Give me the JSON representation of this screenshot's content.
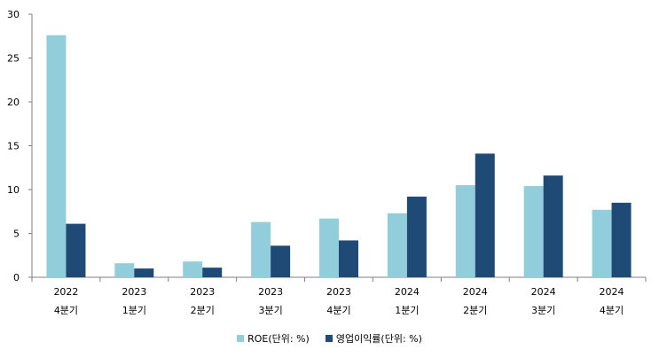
{
  "chart_data": {
    "type": "bar",
    "categories": [
      [
        "2022",
        "4분기"
      ],
      [
        "2023",
        "1분기"
      ],
      [
        "2023",
        "2분기"
      ],
      [
        "2023",
        "3분기"
      ],
      [
        "2023",
        "4분기"
      ],
      [
        "2024",
        "1분기"
      ],
      [
        "2024",
        "2분기"
      ],
      [
        "2024",
        "3분기"
      ],
      [
        "2024",
        "4분기"
      ]
    ],
    "series": [
      {
        "name": "ROE(단위: %)",
        "color": "#92CDDC",
        "values": [
          27.6,
          1.6,
          1.8,
          6.3,
          6.7,
          7.3,
          10.5,
          10.4,
          7.7
        ]
      },
      {
        "name": "영업이익률(단위: %)",
        "color": "#1F4A75",
        "values": [
          6.1,
          1.0,
          1.1,
          3.6,
          4.2,
          9.2,
          14.1,
          11.6,
          8.5
        ]
      }
    ],
    "ylim": [
      0,
      30
    ],
    "yticks": [
      0,
      5,
      10,
      15,
      20,
      25,
      30
    ],
    "grid": false,
    "legend": "bottom",
    "title": "",
    "xlabel": "",
    "ylabel": ""
  }
}
